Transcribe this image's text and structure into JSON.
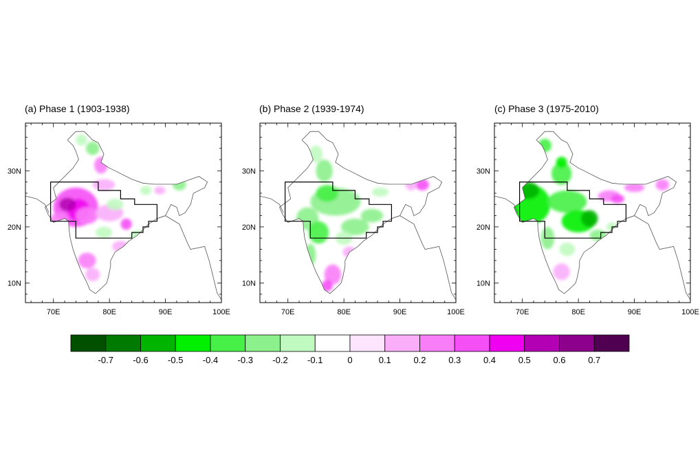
{
  "figure": {
    "panels": [
      {
        "id": "a",
        "title": "(a) Phase 1 (1903-1938)",
        "regime": "positive-west",
        "lat_ticks": [
          "10N",
          "20N",
          "30N"
        ],
        "lon_ticks": [
          "70E",
          "80E",
          "90E",
          "100E"
        ]
      },
      {
        "id": "b",
        "title": "(b) Phase 2 (1939-1974)",
        "regime": "negative-central",
        "lat_ticks": [
          "10N",
          "20N",
          "30N"
        ],
        "lon_ticks": [
          "70E",
          "80E",
          "90E",
          "100E"
        ]
      },
      {
        "id": "c",
        "title": "(c) Phase 3 (1975-2010)",
        "regime": "negative-strong",
        "lat_ticks": [
          "10N",
          "20N",
          "30N"
        ],
        "lon_ticks": [
          "70E",
          "80E",
          "90E",
          "100E"
        ]
      }
    ],
    "map_extent": {
      "lon_min": 65,
      "lon_max": 100,
      "lat_min": 6.5,
      "lat_max": 38.5
    },
    "colorbar": {
      "colors": [
        "#005000",
        "#007a00",
        "#00b400",
        "#00f000",
        "#46f046",
        "#8cf08c",
        "#c0fac0",
        "#ffffff",
        "#fde6fd",
        "#faaefa",
        "#f87ef8",
        "#f550f5",
        "#f000f0",
        "#b400b4",
        "#8c008c",
        "#500050"
      ],
      "labels": [
        "-0.7",
        "-0.6",
        "-0.5",
        "-0.4",
        "-0.3",
        "-0.2",
        "-0.1",
        "0",
        "0.1",
        "0.2",
        "0.3",
        "0.4",
        "0.5",
        "0.6",
        "0.7"
      ]
    }
  }
}
